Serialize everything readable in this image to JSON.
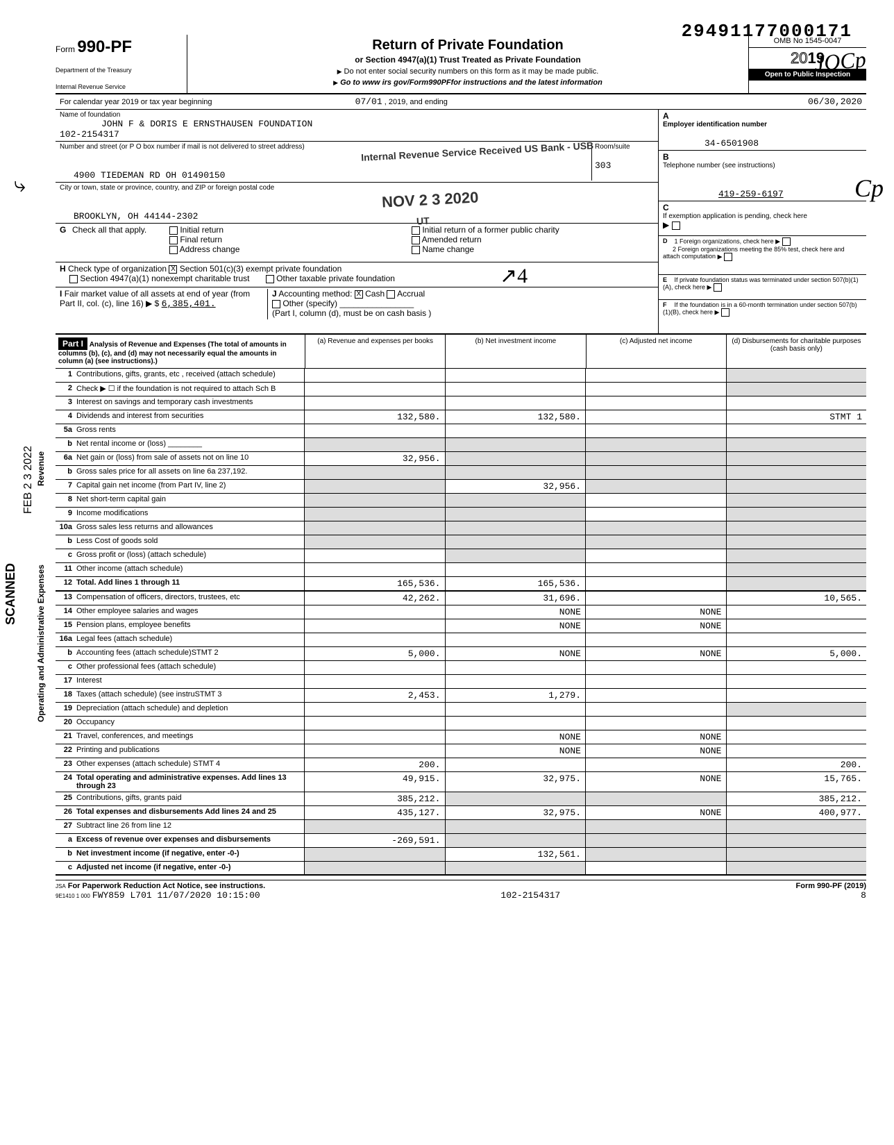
{
  "dln": "29491177000171",
  "form": {
    "prefix": "Form",
    "number": "990-PF",
    "dept1": "Department of the Treasury",
    "dept2": "Internal Revenue Service"
  },
  "title": {
    "main": "Return of Private Foundation",
    "sub": "or Section 4947(a)(1) Trust Treated as Private Foundation",
    "note1": "Do not enter social security numbers on this form as it may be made public.",
    "note2": "Go to www irs gov/Form990PFfor instructions and the latest information"
  },
  "omb": {
    "number": "OMB No 1545-0047",
    "year_prefix": "20",
    "year_suffix": "19",
    "open": "Open to Public Inspection"
  },
  "tax_year": {
    "label": "For calendar year 2019 or tax year beginning",
    "begin": "07/01",
    "begin_suffix": ", 2019, and ending",
    "end": "06/30,2020"
  },
  "foundation": {
    "name_label": "Name of foundation",
    "name": "JOHN F & DORIS E ERNSTHAUSEN FOUNDATION",
    "acct": "102-2154317",
    "addr_label": "Number and street (or P O  box number if mail is not delivered to street address)",
    "addr": "4900 TIEDEMAN RD OH 01490150",
    "room_label": "Room/suite",
    "room": "303",
    "city_label": "City or town, state or province, country, and ZIP or foreign postal code",
    "city": "BROOKLYN, OH 44144-2302"
  },
  "ein": {
    "label": "Employer identification number",
    "value": "34-6501908",
    "letter": "A"
  },
  "phone": {
    "label": "Telephone number (see instructions)",
    "value": "419-259-6197",
    "letter": "B"
  },
  "exemption": {
    "label": "If exemption application is pending, check here",
    "letter": "C"
  },
  "section_d": {
    "letter": "D",
    "d1": "1  Foreign organizations, check here",
    "d2": "2  Foreign organizations meeting the 85% test, check here and attach computation"
  },
  "section_e": {
    "letter": "E",
    "text": "If private foundation status was terminated under section 507(b)(1)(A), check here"
  },
  "section_f": {
    "letter": "F",
    "text": "If the foundation is in a 60-month termination under section 507(b)(1)(B), check here"
  },
  "g": {
    "label": "Check all that apply.",
    "opts": [
      "Initial return",
      "Final return",
      "Address change",
      "Initial return of a former public charity",
      "Amended return",
      "Name change"
    ]
  },
  "h": {
    "label": "Check type of organization",
    "opt1": "Section 501(c)(3) exempt private foundation",
    "opt2": "Section 4947(a)(1) nonexempt charitable trust",
    "opt3": "Other taxable private foundation",
    "checked": "X"
  },
  "i": {
    "label": "Fair market value of all assets at end of year (from Part II, col. (c), line 16) ▶ $",
    "value": "6,385,401."
  },
  "j": {
    "label": "Accounting method:",
    "cash": "Cash",
    "accrual": "Accrual",
    "other": "Other (specify)",
    "note": "(Part I, column (d), must be on cash basis )",
    "checked": "X"
  },
  "stamps": {
    "received": "Internal Revenue Service\nReceived US Bank - USB",
    "date": "NOV 2 3 2020",
    "ut": "UT"
  },
  "handwriting": {
    "sig": "JOCp",
    "init": "Cp",
    "mark": "⤷",
    "arrow": "↗4"
  },
  "part1": {
    "header": "Part I",
    "title": "Analysis of Revenue and Expenses (The total of amounts in columns (b), (c), and (d) may not necessarily equal the amounts in column (a) (see instructions).)",
    "cols": {
      "a": "(a) Revenue and expenses per books",
      "b": "(b) Net investment income",
      "c": "(c) Adjusted net income",
      "d": "(d) Disbursements for charitable purposes (cash basis only)"
    }
  },
  "side": {
    "revenue": "Revenue",
    "expenses": "Operating and Administrative Expenses",
    "scanned": "SCANNED",
    "feb": "FEB 2 3 2022"
  },
  "lines": [
    {
      "n": "1",
      "d": "Contributions, gifts, grants, etc , received (attach schedule)",
      "a": "",
      "b": "",
      "c": "",
      "dd": "",
      "d_shade": true
    },
    {
      "n": "2",
      "d": "Check ▶ ☐ if the foundation is not required to attach Sch B",
      "a": "",
      "b": "",
      "c": "",
      "dd": "",
      "d_shade": true
    },
    {
      "n": "3",
      "d": "Interest on savings and temporary cash investments",
      "a": "",
      "b": "",
      "c": "",
      "dd": "",
      "d_shade": false
    },
    {
      "n": "4",
      "d": "Dividends and interest from securities",
      "a": "132,580.",
      "b": "132,580.",
      "c": "",
      "dd": "STMT 1",
      "d_shade": false
    },
    {
      "n": "5a",
      "d": "Gross rents",
      "a": "",
      "b": "",
      "c": "",
      "dd": "",
      "d_shade": false
    },
    {
      "n": "b",
      "d": "Net rental income or (loss) ________",
      "a": "",
      "b": "",
      "c": "",
      "dd": "",
      "a_shade": true,
      "b_shade": true,
      "c_shade": true,
      "d_shade": true
    },
    {
      "n": "6a",
      "d": "Net gain or (loss) from sale of assets not on line 10",
      "a": "32,956.",
      "b": "",
      "c": "",
      "dd": "",
      "b_shade": true,
      "c_shade": true,
      "d_shade": true
    },
    {
      "n": "b",
      "d": "Gross sales price for all assets on line 6a   237,192.",
      "a": "",
      "b": "",
      "c": "",
      "dd": "",
      "a_shade": true,
      "b_shade": true,
      "c_shade": true,
      "d_shade": true
    },
    {
      "n": "7",
      "d": "Capital gain net income (from Part IV, line 2)",
      "a": "",
      "b": "32,956.",
      "c": "",
      "dd": "",
      "a_shade": true,
      "c_shade": true,
      "d_shade": true
    },
    {
      "n": "8",
      "d": "Net short-term capital gain",
      "a": "",
      "b": "",
      "c": "",
      "dd": "",
      "a_shade": true,
      "b_shade": true,
      "d_shade": true
    },
    {
      "n": "9",
      "d": "Income modifications",
      "a": "",
      "b": "",
      "c": "",
      "dd": "",
      "a_shade": true,
      "b_shade": true,
      "d_shade": true
    },
    {
      "n": "10a",
      "d": "Gross sales less returns and allowances",
      "a": "",
      "b": "",
      "c": "",
      "dd": "",
      "a_shade": true,
      "b_shade": true,
      "c_shade": true,
      "d_shade": true
    },
    {
      "n": "b",
      "d": "Less Cost of goods sold",
      "a": "",
      "b": "",
      "c": "",
      "dd": "",
      "a_shade": true,
      "b_shade": true,
      "c_shade": true,
      "d_shade": true
    },
    {
      "n": "c",
      "d": "Gross profit or (loss) (attach schedule)",
      "a": "",
      "b": "",
      "c": "",
      "dd": "",
      "b_shade": true,
      "d_shade": true
    },
    {
      "n": "11",
      "d": "Other income (attach schedule)",
      "a": "",
      "b": "",
      "c": "",
      "dd": "",
      "d_shade": true
    },
    {
      "n": "12",
      "d": "Total. Add lines 1 through 11",
      "a": "165,536.",
      "b": "165,536.",
      "c": "",
      "dd": "",
      "d_shade": true,
      "bold": true
    },
    {
      "n": "13",
      "d": "Compensation of officers, directors, trustees, etc",
      "a": "42,262.",
      "b": "31,696.",
      "c": "",
      "dd": "10,565."
    },
    {
      "n": "14",
      "d": "Other employee salaries and wages",
      "a": "",
      "b": "NONE",
      "c": "NONE",
      "dd": ""
    },
    {
      "n": "15",
      "d": "Pension plans, employee benefits",
      "a": "",
      "b": "NONE",
      "c": "NONE",
      "dd": ""
    },
    {
      "n": "16a",
      "d": "Legal fees (attach schedule)",
      "a": "",
      "b": "",
      "c": "",
      "dd": ""
    },
    {
      "n": "b",
      "d": "Accounting fees (attach schedule)STMT 2",
      "a": "5,000.",
      "b": "NONE",
      "c": "NONE",
      "dd": "5,000."
    },
    {
      "n": "c",
      "d": "Other professional fees (attach schedule)",
      "a": "",
      "b": "",
      "c": "",
      "dd": ""
    },
    {
      "n": "17",
      "d": "Interest",
      "a": "",
      "b": "",
      "c": "",
      "dd": ""
    },
    {
      "n": "18",
      "d": "Taxes (attach schedule) (see instruSTMT 3",
      "a": "2,453.",
      "b": "1,279.",
      "c": "",
      "dd": ""
    },
    {
      "n": "19",
      "d": "Depreciation (attach schedule) and depletion",
      "a": "",
      "b": "",
      "c": "",
      "dd": "",
      "d_shade": true
    },
    {
      "n": "20",
      "d": "Occupancy",
      "a": "",
      "b": "",
      "c": "",
      "dd": ""
    },
    {
      "n": "21",
      "d": "Travel, conferences, and meetings",
      "a": "",
      "b": "NONE",
      "c": "NONE",
      "dd": ""
    },
    {
      "n": "22",
      "d": "Printing and publications",
      "a": "",
      "b": "NONE",
      "c": "NONE",
      "dd": ""
    },
    {
      "n": "23",
      "d": "Other expenses (attach schedule) STMT 4",
      "a": "200.",
      "b": "",
      "c": "",
      "dd": "200."
    },
    {
      "n": "24",
      "d": "Total operating and administrative expenses. Add lines 13 through 23",
      "a": "49,915.",
      "b": "32,975.",
      "c": "NONE",
      "dd": "15,765.",
      "bold": true
    },
    {
      "n": "25",
      "d": "Contributions, gifts, grants paid",
      "a": "385,212.",
      "b": "",
      "c": "",
      "dd": "385,212.",
      "b_shade": true,
      "c_shade": true
    },
    {
      "n": "26",
      "d": "Total expenses and disbursements Add lines 24 and 25",
      "a": "435,127.",
      "b": "32,975.",
      "c": "NONE",
      "dd": "400,977.",
      "bold": true
    },
    {
      "n": "27",
      "d": "Subtract line 26 from line 12",
      "a": "",
      "b": "",
      "c": "",
      "dd": "",
      "a_shade": true,
      "b_shade": true,
      "c_shade": true,
      "d_shade": true
    },
    {
      "n": "a",
      "d": "Excess of revenue over expenses and disbursements",
      "a": "-269,591.",
      "b": "",
      "c": "",
      "dd": "",
      "b_shade": true,
      "c_shade": true,
      "d_shade": true,
      "bold": true
    },
    {
      "n": "b",
      "d": "Net investment income (if negative, enter -0-)",
      "a": "",
      "b": "132,561.",
      "c": "",
      "dd": "",
      "a_shade": true,
      "c_shade": true,
      "d_shade": true,
      "bold": true
    },
    {
      "n": "c",
      "d": "Adjusted net income (if negative, enter -0-)",
      "a": "",
      "b": "",
      "c": "",
      "dd": "",
      "a_shade": true,
      "b_shade": true,
      "d_shade": true,
      "bold": true
    }
  ],
  "footer": {
    "jsa": "JSA",
    "pra": "For Paperwork Reduction Act Notice, see instructions.",
    "code1": "9E1410 1 000",
    "code2": "FWY859 L701 11/07/2020 10:15:00",
    "acct": "102-2154317",
    "page": "8",
    "formref": "Form 990-PF (2019)"
  }
}
